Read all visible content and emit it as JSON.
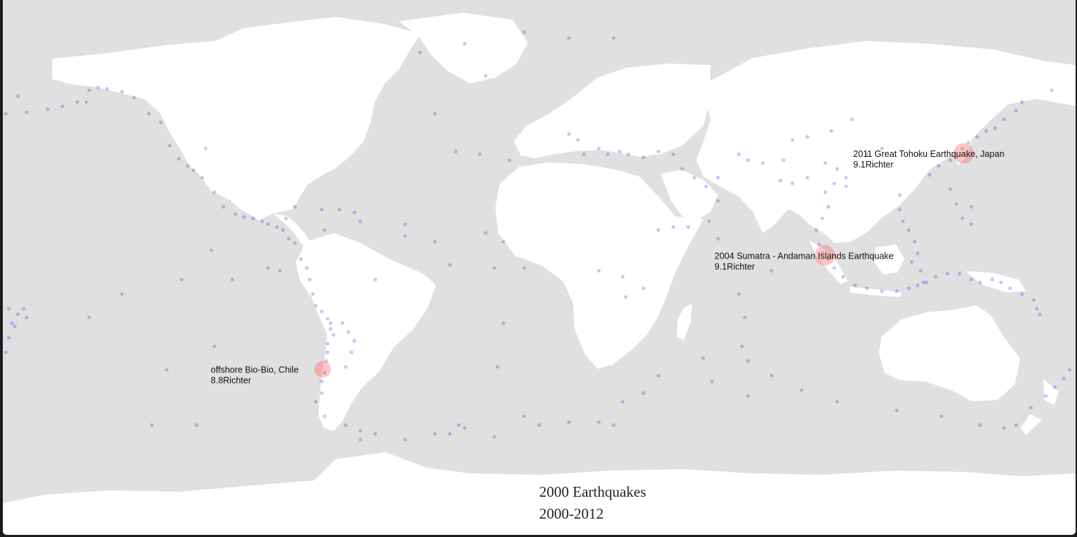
{
  "map": {
    "type": "scatter",
    "projection": "equirectangular",
    "colors": {
      "ocean": "#e0e0e0",
      "land": "#ffffff",
      "quake": "#0000ee",
      "highlight": "#ff5a5a"
    },
    "annotations": [
      {
        "line1": "2011 Great Tohoku Earthquake, Japan",
        "line2": "9.1Richter",
        "lon": 142.4,
        "lat": 38.3,
        "magnitude": 9.1
      },
      {
        "line1": "2004 Sumatra - Andaman Islands Earthquake",
        "line2": "9.1Richter",
        "lon": 95.9,
        "lat": 3.3,
        "magnitude": 9.1
      },
      {
        "line1": "offshore Bio-Bio, Chile",
        "line2": "8.8Richter",
        "lon": -72.7,
        "lat": -35.8,
        "magnitude": 8.8
      }
    ]
  },
  "chart_data": {
    "type": "scatter",
    "xlabel": "",
    "ylabel": "",
    "xlim": [
      -180,
      180
    ],
    "ylim": [
      -60,
      83
    ],
    "series": [
      {
        "values": [
          [
            -179,
            52
          ],
          [
            -172,
            52.5
          ],
          [
            -165,
            53.5
          ],
          [
            -160,
            54.5
          ],
          [
            -155,
            56
          ],
          [
            -151,
            60
          ],
          [
            -148,
            61
          ],
          [
            -145,
            60.5
          ],
          [
            -140,
            59.5
          ],
          [
            -136,
            57.5
          ],
          [
            -131,
            52
          ],
          [
            -127,
            49
          ],
          [
            -124,
            41
          ],
          [
            -121,
            36.5
          ],
          [
            -118,
            34
          ],
          [
            -116,
            32.5
          ],
          [
            -113,
            30
          ],
          [
            -109,
            25
          ],
          [
            -106,
            20
          ],
          [
            -102,
            17.5
          ],
          [
            -99,
            16.5
          ],
          [
            -96,
            16
          ],
          [
            -93,
            15
          ],
          [
            -91,
            14
          ],
          [
            -88,
            13
          ],
          [
            -86,
            12
          ],
          [
            -84,
            9
          ],
          [
            -82,
            7.5
          ],
          [
            -80,
            2
          ],
          [
            -78,
            -1
          ],
          [
            -77,
            -5
          ],
          [
            -76,
            -10
          ],
          [
            -75,
            -14
          ],
          [
            -73,
            -16
          ],
          [
            -71,
            -18.5
          ],
          [
            -70,
            -20
          ],
          [
            -70,
            -22
          ],
          [
            -69,
            -24
          ],
          [
            -71,
            -27
          ],
          [
            -71,
            -30
          ],
          [
            -71.5,
            -33
          ],
          [
            -72,
            -37
          ],
          [
            -73,
            -40
          ],
          [
            -73,
            -44
          ],
          [
            -75,
            -47
          ],
          [
            -72,
            -52
          ],
          [
            -65,
            -55
          ],
          [
            -60,
            -57
          ],
          [
            -55,
            -58
          ],
          [
            -45,
            -60
          ],
          [
            -35,
            -58
          ],
          [
            -25,
            -56
          ],
          [
            -15,
            -59
          ],
          [
            0,
            -55
          ],
          [
            10,
            -54
          ],
          [
            20,
            -54
          ],
          [
            28,
            -47
          ],
          [
            35,
            -44
          ],
          [
            40,
            -38
          ],
          [
            55,
            -32
          ],
          [
            68,
            -28
          ],
          [
            70,
            -33
          ],
          [
            78,
            -38
          ],
          [
            88,
            -43
          ],
          [
            100,
            -47
          ],
          [
            120,
            -50
          ],
          [
            135,
            -52
          ],
          [
            148,
            -55
          ],
          [
            156,
            -56
          ],
          [
            160,
            -55
          ],
          [
            165,
            -49
          ],
          [
            170,
            -45
          ],
          [
            173,
            -42
          ],
          [
            176,
            -39
          ],
          [
            178,
            -36
          ],
          [
            -179,
            -30
          ],
          [
            -178,
            -25
          ],
          [
            -177,
            -20
          ],
          [
            -175,
            -17
          ],
          [
            -173,
            -15
          ],
          [
            168,
            -17
          ],
          [
            167,
            -15
          ],
          [
            166,
            -12
          ],
          [
            162,
            -10
          ],
          [
            158,
            -8
          ],
          [
            155,
            -6
          ],
          [
            152,
            -5
          ],
          [
            148,
            -6
          ],
          [
            145,
            -5
          ],
          [
            141,
            -3
          ],
          [
            137,
            -3
          ],
          [
            133,
            -4
          ],
          [
            130,
            -6
          ],
          [
            127,
            -7
          ],
          [
            124,
            -8
          ],
          [
            120,
            -9
          ],
          [
            115,
            -9
          ],
          [
            110,
            -8
          ],
          [
            106,
            -7
          ],
          [
            102,
            -4
          ],
          [
            99,
            -1
          ],
          [
            97,
            2
          ],
          [
            95,
            4
          ],
          [
            94,
            7
          ],
          [
            93,
            12
          ],
          [
            95,
            16
          ],
          [
            97,
            20
          ],
          [
            96,
            25
          ],
          [
            99,
            28
          ],
          [
            103,
            27
          ],
          [
            103,
            30
          ],
          [
            100,
            33
          ],
          [
            96,
            35
          ],
          [
            90,
            30
          ],
          [
            85,
            28
          ],
          [
            81,
            29
          ],
          [
            75,
            35
          ],
          [
            70,
            36
          ],
          [
            67,
            38
          ],
          [
            60,
            30
          ],
          [
            56,
            27
          ],
          [
            52,
            30
          ],
          [
            48,
            33
          ],
          [
            45,
            38
          ],
          [
            40,
            39
          ],
          [
            35,
            37
          ],
          [
            30,
            38
          ],
          [
            27,
            39
          ],
          [
            23,
            38
          ],
          [
            20,
            40
          ],
          [
            15,
            38
          ],
          [
            13,
            43
          ],
          [
            10,
            45
          ],
          [
            -10,
            36
          ],
          [
            -20,
            38
          ],
          [
            -28,
            39
          ],
          [
            -35,
            52
          ],
          [
            -30,
            0
          ],
          [
            -15,
            -1
          ],
          [
            -5,
            -1
          ],
          [
            -12,
            8
          ],
          [
            -45,
            14
          ],
          [
            -60,
            15
          ],
          [
            -62,
            18
          ],
          [
            -67,
            19
          ],
          [
            -73,
            19
          ],
          [
            -82,
            20
          ],
          [
            -85,
            16
          ],
          [
            20,
            -2
          ],
          [
            28,
            -4
          ],
          [
            29,
            -11
          ],
          [
            35,
            -8
          ],
          [
            40,
            12
          ],
          [
            45,
            13
          ],
          [
            50,
            13
          ],
          [
            57,
            15
          ],
          [
            60,
            22
          ],
          [
            60,
            9
          ],
          [
            67,
            -10
          ],
          [
            69,
            -18
          ],
          [
            78,
            -2
          ],
          [
            82,
            36
          ],
          [
            85,
            43
          ],
          [
            90,
            44
          ],
          [
            98,
            46
          ],
          [
            105,
            50
          ],
          [
            110,
            38
          ],
          [
            115,
            40
          ],
          [
            121,
            24
          ],
          [
            121,
            19
          ],
          [
            122,
            15
          ],
          [
            124,
            12
          ],
          [
            126,
            8
          ],
          [
            127,
            4
          ],
          [
            125,
            1
          ],
          [
            128,
            -2
          ],
          [
            129,
            -6
          ],
          [
            131,
            31
          ],
          [
            134,
            34
          ],
          [
            138,
            36
          ],
          [
            140,
            37
          ],
          [
            142,
            40
          ],
          [
            144,
            42
          ],
          [
            147,
            44
          ],
          [
            150,
            46
          ],
          [
            153,
            47
          ],
          [
            156,
            50
          ],
          [
            160,
            53
          ],
          [
            162,
            56
          ],
          [
            172,
            60
          ],
          [
            138,
            26
          ],
          [
            140,
            21
          ],
          [
            142,
            16
          ],
          [
            145,
            14
          ],
          [
            145,
            20
          ],
          [
            -178,
            -15
          ],
          [
            -172,
            -18
          ],
          [
            -176,
            -21
          ],
          [
            -151,
            -18
          ],
          [
            -140,
            -10
          ],
          [
            -125,
            -36
          ],
          [
            -109,
            -28
          ],
          [
            -115,
            -55
          ],
          [
            -130,
            -55
          ],
          [
            -120,
            -5
          ],
          [
            -103,
            -5
          ],
          [
            -60,
            -60
          ],
          [
            -30,
            -58
          ],
          [
            -27,
            -55
          ],
          [
            -14,
            -35
          ],
          [
            -12,
            -20
          ],
          [
            -5,
            -52
          ],
          [
            25,
            -55
          ],
          [
            58,
            -40
          ],
          [
            70,
            -45
          ],
          [
            -40,
            73
          ],
          [
            -5,
            80
          ],
          [
            10,
            78
          ],
          [
            25,
            78
          ],
          [
            -18,
            65
          ],
          [
            -25,
            76
          ],
          [
            -110,
            5
          ],
          [
            -87,
            -2
          ],
          [
            -91,
            -1
          ],
          [
            -175,
            58
          ],
          [
            -152,
            56
          ],
          [
            -112,
            40
          ],
          [
            -72,
            12
          ],
          [
            -45,
            10
          ],
          [
            -18,
            11
          ],
          [
            -35,
            8
          ],
          [
            -55,
            -5
          ],
          [
            -66,
            -20
          ],
          [
            -64,
            -23
          ],
          [
            -62,
            -26
          ],
          [
            -63,
            -30
          ],
          [
            -65,
            -35
          ]
        ]
      }
    ],
    "highlights": [
      {
        "name": "2011 Great Tohoku Earthquake, Japan",
        "magnitude": 9.1,
        "lon": 142.4,
        "lat": 38.3
      },
      {
        "name": "2004 Sumatra - Andaman Islands Earthquake",
        "magnitude": 9.1,
        "lon": 95.9,
        "lat": 3.3
      },
      {
        "name": "offshore Bio-Bio, Chile",
        "magnitude": 8.8,
        "lon": -72.7,
        "lat": -35.8
      }
    ]
  },
  "caption": {
    "line1": "2000 Earthquakes",
    "line2": "2000-2012"
  }
}
